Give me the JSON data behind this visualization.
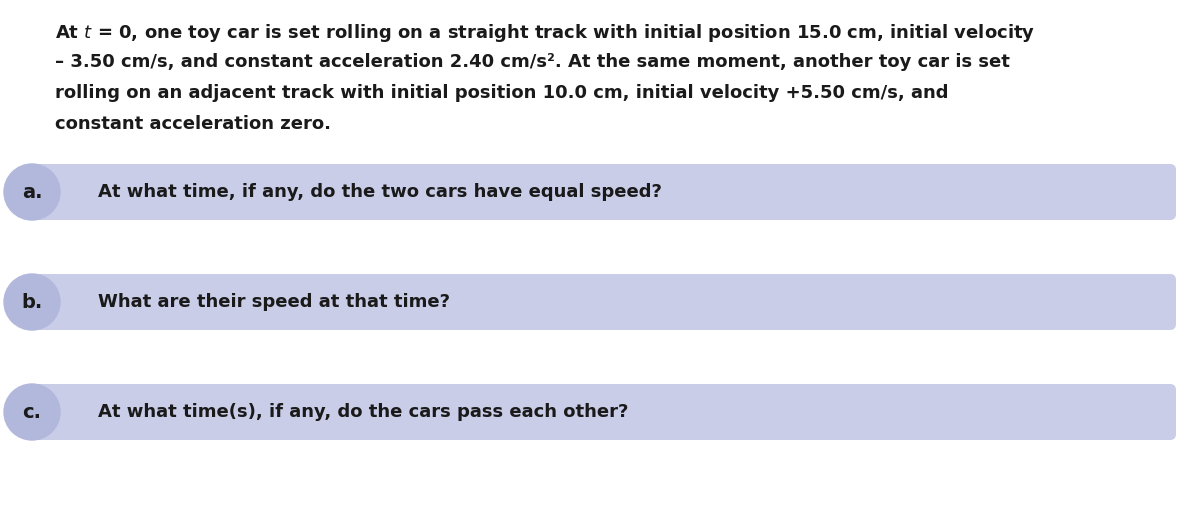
{
  "background_color": "#ffffff",
  "questions": [
    {
      "label": "a.",
      "text": "At what time, if any, do the two cars have equal speed?",
      "box_color": "#c9cde8",
      "circle_color": "#b2b8dc"
    },
    {
      "label": "b.",
      "text": "What are their speed at that time?",
      "box_color": "#c9cde8",
      "circle_color": "#b2b8dc"
    },
    {
      "label": "c.",
      "text": "At what time(s), if any, do the cars pass each other?",
      "box_color": "#c9cde8",
      "circle_color": "#b2b8dc"
    }
  ],
  "para_fontsize": 13.0,
  "question_fontsize": 13.0,
  "label_fontsize": 14.0,
  "text_color": "#1a1a1a",
  "fig_width": 12.0,
  "fig_height": 5.07
}
